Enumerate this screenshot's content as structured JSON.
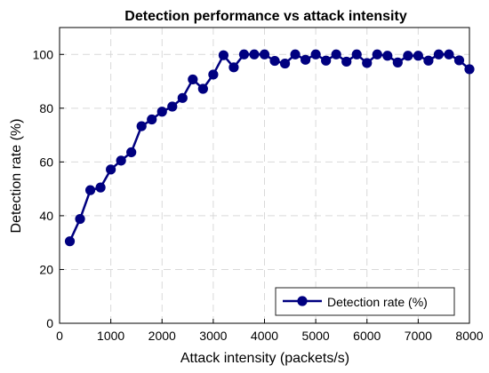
{
  "chart_data": {
    "type": "line",
    "title": "Detection performance vs attack intensity",
    "xlabel": "Attack intensity (packets/s)",
    "ylabel": "Detection rate (%)",
    "xlim": [
      0,
      8000
    ],
    "ylim": [
      0,
      110
    ],
    "xticks": [
      0,
      1000,
      2000,
      3000,
      4000,
      5000,
      6000,
      7000,
      8000
    ],
    "yticks": [
      0,
      20,
      40,
      60,
      80,
      100
    ],
    "grid": true,
    "legend_position": "bottom-right",
    "series": [
      {
        "name": "Detection rate (%)",
        "color": "#000080",
        "marker": "circle",
        "x": [
          200,
          400,
          600,
          800,
          1000,
          1200,
          1400,
          1600,
          1800,
          2000,
          2200,
          2400,
          2600,
          2800,
          3000,
          3200,
          3400,
          3600,
          3800,
          4000,
          4200,
          4400,
          4600,
          4800,
          5000,
          5200,
          5400,
          5600,
          5800,
          6000,
          6200,
          6400,
          6600,
          6800,
          7000,
          7200,
          7400,
          7600,
          7800,
          8000
        ],
        "y": [
          30.5,
          38.8,
          49.5,
          50.5,
          57.2,
          60.5,
          63.6,
          73.3,
          75.8,
          78.7,
          80.6,
          83.8,
          90.7,
          87.2,
          92.5,
          99.7,
          95.2,
          100,
          100,
          100,
          97.6,
          96.6,
          100,
          98,
          100,
          97.7,
          100,
          97.3,
          100,
          96.8,
          100,
          99.5,
          97,
          99.5,
          99.5,
          97.7,
          100,
          100,
          97.8,
          94.5
        ]
      }
    ]
  }
}
